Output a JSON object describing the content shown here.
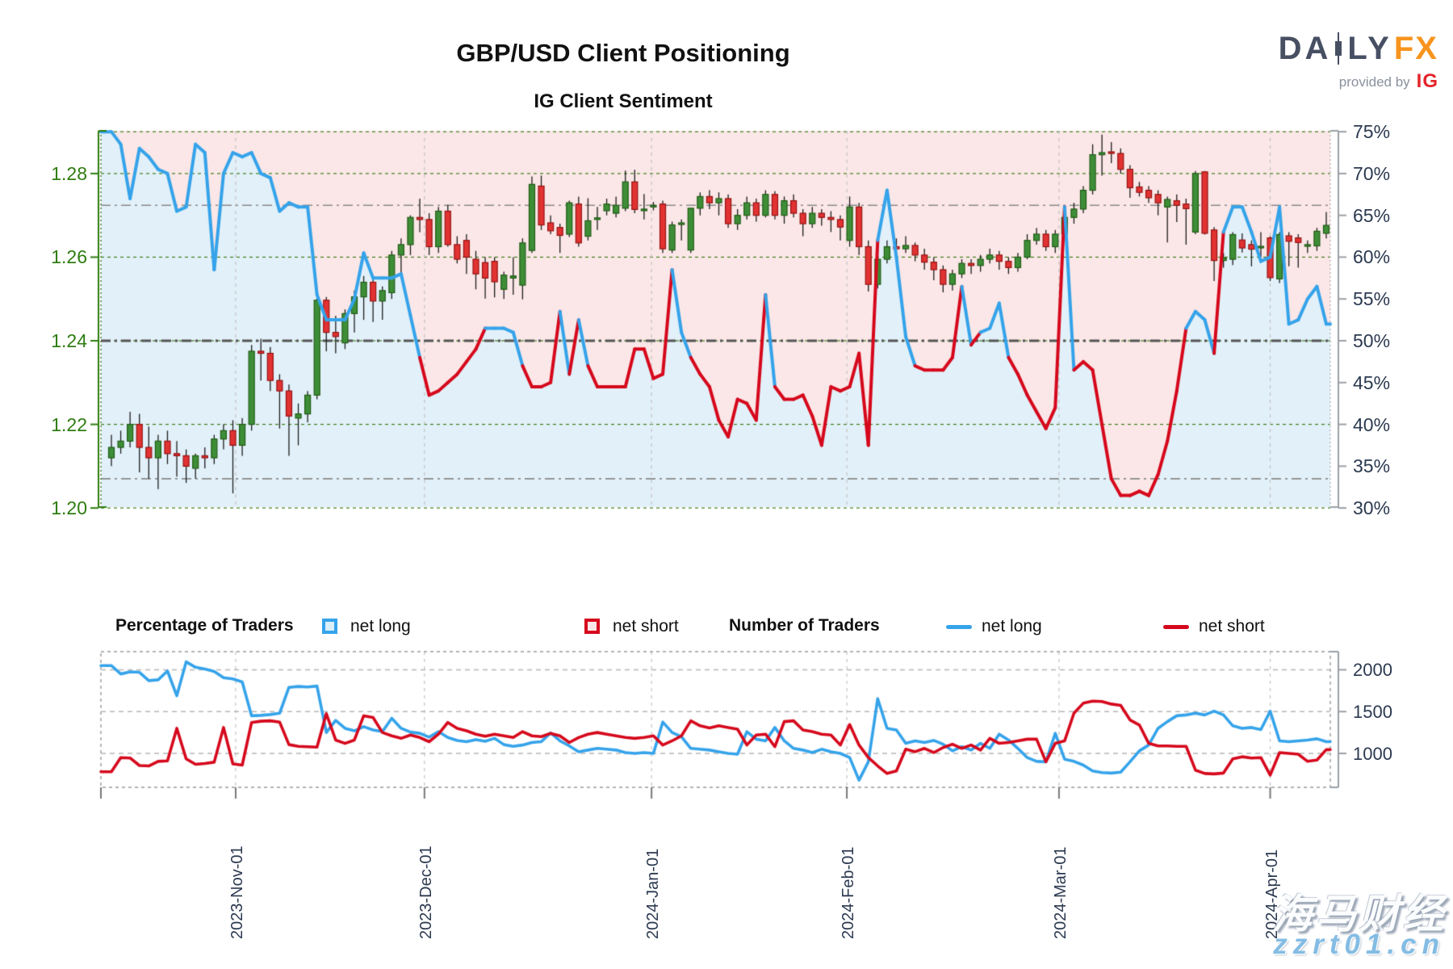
{
  "title": "GBP/USD Client Positioning",
  "subtitle": "IG Client Sentiment",
  "logo": {
    "text_da": "DA",
    "text_ly": "LY",
    "text_fx": "FX",
    "provided_by": "provided by",
    "ig": "IG"
  },
  "watermark": {
    "line1": "海马财经",
    "line2": "zzrt01.cn"
  },
  "legend": {
    "percentage_title": "Percentage of Traders",
    "number_title": "Number of Traders",
    "net_long_label": "net long",
    "net_short_label": "net short"
  },
  "colors": {
    "net_long": "#35a3ea",
    "net_short": "#d6081c",
    "candle_up_fill": "#3e8e38",
    "candle_up_edge": "#1f5c14",
    "candle_down_fill": "#e23232",
    "candle_down_edge": "#971111",
    "wick": "#1c1c1c",
    "bg_short_area": "#fbe7e7",
    "bg_long_area": "#e2f0f9",
    "grid_green": "#3f7d1c",
    "axis_green": "#2e7d10",
    "axis_gray": "#9aa0a6",
    "ref_gray": "#8a8a8a",
    "mid_line": "#555555",
    "month_line": "#c2c2c2",
    "lower_grid": "#b5b5b5",
    "lower_border": "#9b9b9b",
    "label_navy": "#2b3950"
  },
  "chart_data": {
    "type": "candlestick+line",
    "title": "GBP/USD Client Positioning",
    "subtitle": "IG Client Sentiment",
    "main": {
      "price_axis": {
        "ticks": [
          1.2,
          1.22,
          1.24,
          1.26,
          1.28
        ],
        "range": [
          1.198,
          1.2902
        ]
      },
      "percent_axis": {
        "ticks": [
          30,
          35,
          40,
          45,
          50,
          55,
          60,
          65,
          70,
          75
        ],
        "range": [
          29.9,
          76.2
        ]
      },
      "reference_lines_pct": [
        66.2,
        50,
        33.5
      ],
      "months": [
        {
          "label": "2023-Nov-01",
          "index": 13.3
        },
        {
          "label": "2023-Dec-01",
          "index": 33.5
        },
        {
          "label": "2024-Jan-01",
          "index": 57.8
        },
        {
          "label": "2024-Feb-01",
          "index": 78.7
        },
        {
          "label": "2024-Mar-01",
          "index": 101.4
        },
        {
          "label": "2024-Apr-01",
          "index": 124.0
        }
      ],
      "candles_ohlc": [
        [
          1.212,
          1.2175,
          1.21,
          1.2145
        ],
        [
          1.2145,
          1.2185,
          1.213,
          1.216
        ],
        [
          1.216,
          1.223,
          1.2145,
          1.22
        ],
        [
          1.22,
          1.2225,
          1.2085,
          1.2145
        ],
        [
          1.2145,
          1.2195,
          1.207,
          1.212
        ],
        [
          1.212,
          1.2175,
          1.2045,
          1.216
        ],
        [
          1.216,
          1.2185,
          1.2105,
          1.213
        ],
        [
          1.213,
          1.216,
          1.2075,
          1.2125
        ],
        [
          1.2125,
          1.214,
          1.206,
          1.21
        ],
        [
          1.2095,
          1.213,
          1.207,
          1.2125
        ],
        [
          1.2125,
          1.2145,
          1.2095,
          1.212
        ],
        [
          1.212,
          1.2175,
          1.2105,
          1.2165
        ],
        [
          1.2165,
          1.22,
          1.214,
          1.2185
        ],
        [
          1.2185,
          1.221,
          1.2035,
          1.215
        ],
        [
          1.215,
          1.2215,
          1.2125,
          1.22
        ],
        [
          1.22,
          1.239,
          1.2185,
          1.2375
        ],
        [
          1.2375,
          1.2405,
          1.2305,
          1.237
        ],
        [
          1.237,
          1.2385,
          1.228,
          1.2305
        ],
        [
          1.2305,
          1.232,
          1.219,
          1.228
        ],
        [
          1.228,
          1.2295,
          1.2125,
          1.222
        ],
        [
          1.2215,
          1.225,
          1.215,
          1.2225
        ],
        [
          1.2225,
          1.228,
          1.2205,
          1.227
        ],
        [
          1.227,
          1.251,
          1.226,
          1.2497
        ],
        [
          1.2497,
          1.2505,
          1.2375,
          1.242
        ],
        [
          1.242,
          1.246,
          1.237,
          1.241
        ],
        [
          1.2395,
          1.2475,
          1.238,
          1.2465
        ],
        [
          1.2465,
          1.252,
          1.242,
          1.2505
        ],
        [
          1.2505,
          1.2555,
          1.245,
          1.254
        ],
        [
          1.254,
          1.2555,
          1.2445,
          1.2495
        ],
        [
          1.2495,
          1.253,
          1.245,
          1.252
        ],
        [
          1.2515,
          1.2615,
          1.25,
          1.2605
        ],
        [
          1.2605,
          1.2645,
          1.256,
          1.263
        ],
        [
          1.263,
          1.27,
          1.2605,
          1.2695
        ],
        [
          1.2695,
          1.274,
          1.266,
          1.269
        ],
        [
          1.269,
          1.2705,
          1.2605,
          1.2625
        ],
        [
          1.2625,
          1.272,
          1.261,
          1.271
        ],
        [
          1.271,
          1.2725,
          1.2625,
          1.263
        ],
        [
          1.263,
          1.265,
          1.2585,
          1.2595
        ],
        [
          1.264,
          1.2655,
          1.256,
          1.26
        ],
        [
          1.2595,
          1.2615,
          1.2523,
          1.256
        ],
        [
          1.2587,
          1.26,
          1.2501,
          1.255
        ],
        [
          1.259,
          1.26,
          1.2504,
          1.2541
        ],
        [
          1.2523,
          1.2565,
          1.25,
          1.2557
        ],
        [
          1.255,
          1.26,
          1.251,
          1.2555
        ],
        [
          1.2533,
          1.2645,
          1.2499,
          1.2634
        ],
        [
          1.2616,
          1.2793,
          1.261,
          1.2774
        ],
        [
          1.277,
          1.2795,
          1.2665,
          1.2677
        ],
        [
          1.2682,
          1.27,
          1.2655,
          1.2663
        ],
        [
          1.2671,
          1.268,
          1.261,
          1.2652
        ],
        [
          1.2655,
          1.2735,
          1.2648,
          1.273
        ],
        [
          1.2727,
          1.2745,
          1.2625,
          1.2634
        ],
        [
          1.265,
          1.2741,
          1.264,
          1.2687
        ],
        [
          1.269,
          1.272,
          1.2665,
          1.2692
        ],
        [
          1.2711,
          1.274,
          1.27,
          1.2727
        ],
        [
          1.2705,
          1.2745,
          1.2695,
          1.2724
        ],
        [
          1.2717,
          1.2807,
          1.271,
          1.278
        ],
        [
          1.278,
          1.2809,
          1.2705,
          1.2714
        ],
        [
          1.2713,
          1.2751,
          1.269,
          1.2713
        ],
        [
          1.2722,
          1.2732,
          1.2712,
          1.2722
        ],
        [
          1.2727,
          1.2735,
          1.261,
          1.262
        ],
        [
          1.2617,
          1.2685,
          1.261,
          1.2677
        ],
        [
          1.2677,
          1.269,
          1.264,
          1.268
        ],
        [
          1.2617,
          1.2717,
          1.261,
          1.2717
        ],
        [
          1.2717,
          1.2755,
          1.27,
          1.2745
        ],
        [
          1.2745,
          1.276,
          1.2715,
          1.273
        ],
        [
          1.273,
          1.2755,
          1.27,
          1.274
        ],
        [
          1.274,
          1.275,
          1.267,
          1.268
        ],
        [
          1.268,
          1.2715,
          1.2665,
          1.27
        ],
        [
          1.27,
          1.2745,
          1.269,
          1.273
        ],
        [
          1.273,
          1.274,
          1.2685,
          1.27
        ],
        [
          1.27,
          1.276,
          1.2695,
          1.275
        ],
        [
          1.275,
          1.2758,
          1.269,
          1.27
        ],
        [
          1.27,
          1.2745,
          1.268,
          1.2735
        ],
        [
          1.2735,
          1.275,
          1.2695,
          1.2705
        ],
        [
          1.2705,
          1.2715,
          1.265,
          1.268
        ],
        [
          1.268,
          1.272,
          1.267,
          1.2705
        ],
        [
          1.2705,
          1.2715,
          1.2675,
          1.2695
        ],
        [
          1.2695,
          1.271,
          1.266,
          1.269
        ],
        [
          1.269,
          1.27,
          1.264,
          1.2672
        ],
        [
          1.264,
          1.2745,
          1.2625,
          1.272
        ],
        [
          1.272,
          1.273,
          1.2605,
          1.2625
        ],
        [
          1.2625,
          1.264,
          1.2518,
          1.2535
        ],
        [
          1.2535,
          1.2605,
          1.2525,
          1.2595
        ],
        [
          1.2595,
          1.264,
          1.2585,
          1.2625
        ],
        [
          1.2625,
          1.2645,
          1.26,
          1.262
        ],
        [
          1.262,
          1.265,
          1.261,
          1.2628
        ],
        [
          1.2628,
          1.2635,
          1.259,
          1.2605
        ],
        [
          1.2605,
          1.262,
          1.257,
          1.2588
        ],
        [
          1.2588,
          1.26,
          1.2545,
          1.257
        ],
        [
          1.257,
          1.258,
          1.2516,
          1.2535
        ],
        [
          1.2535,
          1.257,
          1.252,
          1.256
        ],
        [
          1.256,
          1.2595,
          1.255,
          1.2585
        ],
        [
          1.2585,
          1.2595,
          1.256,
          1.258
        ],
        [
          1.258,
          1.2605,
          1.2565,
          1.2595
        ],
        [
          1.2595,
          1.262,
          1.2585,
          1.2605
        ],
        [
          1.2605,
          1.2615,
          1.257,
          1.259
        ],
        [
          1.259,
          1.26,
          1.256,
          1.2575
        ],
        [
          1.2575,
          1.261,
          1.2565,
          1.26
        ],
        [
          1.26,
          1.2655,
          1.2595,
          1.264
        ],
        [
          1.264,
          1.267,
          1.263,
          1.2655
        ],
        [
          1.2655,
          1.2665,
          1.2615,
          1.2625
        ],
        [
          1.2625,
          1.2665,
          1.261,
          1.2655
        ],
        [
          1.2655,
          1.2705,
          1.2645,
          1.2695
        ],
        [
          1.2695,
          1.273,
          1.268,
          1.2715
        ],
        [
          1.2715,
          1.277,
          1.2705,
          1.276
        ],
        [
          1.276,
          1.287,
          1.275,
          1.2845
        ],
        [
          1.2845,
          1.2893,
          1.2795,
          1.285
        ],
        [
          1.285,
          1.2875,
          1.2825,
          1.2848
        ],
        [
          1.2848,
          1.286,
          1.28,
          1.281
        ],
        [
          1.281,
          1.282,
          1.2742,
          1.2766
        ],
        [
          1.2768,
          1.278,
          1.2745,
          1.2755
        ],
        [
          1.276,
          1.277,
          1.273,
          1.2742
        ],
        [
          1.275,
          1.276,
          1.27,
          1.273
        ],
        [
          1.272,
          1.2745,
          1.2635,
          1.2738
        ],
        [
          1.2735,
          1.275,
          1.2684,
          1.2724
        ],
        [
          1.2727,
          1.274,
          1.263,
          1.2716
        ],
        [
          1.266,
          1.2806,
          1.2655,
          1.28
        ],
        [
          1.2804,
          1.2806,
          1.2654,
          1.2657
        ],
        [
          1.2665,
          1.2672,
          1.2543,
          1.2592
        ],
        [
          1.2592,
          1.261,
          1.2575,
          1.2598
        ],
        [
          1.2595,
          1.266,
          1.2581,
          1.2654
        ],
        [
          1.2641,
          1.2657,
          1.2611,
          1.2622
        ],
        [
          1.263,
          1.264,
          1.2578,
          1.2619
        ],
        [
          1.2624,
          1.266,
          1.26,
          1.2624
        ],
        [
          1.2646,
          1.265,
          1.2543,
          1.2551
        ],
        [
          1.2548,
          1.266,
          1.2538,
          1.2654
        ],
        [
          1.2651,
          1.266,
          1.2578,
          1.2638
        ],
        [
          1.2646,
          1.2655,
          1.2575,
          1.2635
        ],
        [
          1.2625,
          1.264,
          1.261,
          1.2628
        ],
        [
          1.2627,
          1.267,
          1.2615,
          1.2662
        ],
        [
          1.2657,
          1.2708,
          1.2645,
          1.2676
        ]
      ],
      "net_long_pct": [
        75,
        73.5,
        67,
        73,
        72,
        70.5,
        70,
        65.5,
        66,
        73.5,
        72.5,
        58.5,
        70,
        72.5,
        72,
        72.5,
        70,
        69.5,
        65.5,
        66.5,
        66,
        66,
        55.5,
        52.5,
        52.5,
        52.5,
        55,
        60.5,
        57.5,
        57.5,
        57.5,
        58,
        53,
        48,
        43.5,
        44,
        45,
        46,
        47.5,
        49,
        51.5,
        51.5,
        51.5,
        51,
        47,
        44.5,
        44.5,
        45,
        53.5,
        46,
        52.5,
        47,
        44.5,
        44.5,
        44.5,
        44.5,
        49,
        49,
        45.5,
        46,
        58.5,
        51,
        48,
        46,
        44.5,
        40.5,
        38.5,
        43,
        42.5,
        40.5,
        55.5,
        44.5,
        43,
        43,
        43.5,
        41,
        37.5,
        44.5,
        44,
        44.5,
        48.5,
        37.5,
        62,
        68,
        60,
        50.5,
        47,
        46.5,
        46.5,
        46.5,
        48,
        56.5,
        49.5,
        51,
        51.5,
        54.5,
        48,
        46,
        43.5,
        41.5,
        39.5,
        42,
        66,
        46.5,
        47.5,
        46.5,
        40,
        33.5,
        31.5,
        31.5,
        32,
        31.5,
        34,
        38,
        44,
        51.5,
        53.5,
        52.5,
        48.5,
        63,
        66,
        66,
        63,
        59.5,
        60,
        66,
        52,
        52.5,
        55,
        56.5,
        52
      ]
    },
    "lower": {
      "count_axis": {
        "ticks": [
          1000,
          1500,
          2000
        ],
        "range": [
          596,
          2202
        ]
      },
      "net_long_count": [
        2050,
        1950,
        1975,
        1970,
        1870,
        1880,
        1985,
        1690,
        2095,
        2030,
        2010,
        1980,
        1905,
        1890,
        1855,
        1450,
        1455,
        1465,
        1480,
        1790,
        1800,
        1795,
        1805,
        1250,
        1395,
        1300,
        1270,
        1320,
        1280,
        1260,
        1420,
        1300,
        1255,
        1240,
        1195,
        1260,
        1190,
        1155,
        1140,
        1165,
        1145,
        1180,
        1105,
        1085,
        1100,
        1130,
        1140,
        1245,
        1150,
        1090,
        1020,
        1040,
        1060,
        1050,
        1040,
        1010,
        1000,
        1010,
        1000,
        1375,
        1250,
        1200,
        1060,
        1050,
        1040,
        1020,
        1000,
        990,
        1260,
        1170,
        1150,
        1310,
        1150,
        1060,
        1040,
        1010,
        1050,
        1020,
        1000,
        950,
        680,
        900,
        1655,
        1300,
        1280,
        1120,
        1150,
        1130,
        1155,
        1110,
        1030,
        1080,
        1040,
        1120,
        1060,
        1230,
        1160,
        1060,
        950,
        905,
        900,
        1240,
        930,
        905,
        860,
        790,
        770,
        765,
        775,
        900,
        1030,
        1100,
        1300,
        1380,
        1450,
        1460,
        1480,
        1460,
        1505,
        1460,
        1330,
        1300,
        1310,
        1285,
        1505,
        1150,
        1140,
        1150,
        1160,
        1175,
        1140
      ],
      "net_short_count": [
        780,
        950,
        945,
        855,
        850,
        905,
        910,
        1300,
        935,
        870,
        880,
        895,
        1310,
        875,
        860,
        1370,
        1385,
        1390,
        1375,
        1105,
        1085,
        1080,
        1075,
        1475,
        1160,
        1120,
        1160,
        1450,
        1430,
        1250,
        1210,
        1180,
        1220,
        1190,
        1140,
        1230,
        1370,
        1300,
        1270,
        1230,
        1205,
        1230,
        1210,
        1190,
        1260,
        1210,
        1200,
        1240,
        1210,
        1130,
        1190,
        1230,
        1250,
        1230,
        1210,
        1190,
        1180,
        1190,
        1210,
        1100,
        1150,
        1210,
        1390,
        1330,
        1305,
        1330,
        1310,
        1290,
        1100,
        1220,
        1230,
        1080,
        1380,
        1390,
        1280,
        1260,
        1230,
        1220,
        1100,
        1345,
        1100,
        950,
        850,
        760,
        790,
        1050,
        1020,
        1060,
        1010,
        1070,
        1110,
        1060,
        1100,
        1040,
        1180,
        1120,
        1130,
        1150,
        1170,
        1170,
        900,
        1120,
        1150,
        1480,
        1600,
        1625,
        1620,
        1590,
        1575,
        1400,
        1340,
        1120,
        1090,
        1090,
        1085,
        1085,
        800,
        760,
        755,
        765,
        935,
        960,
        945,
        950,
        740,
        1010,
        1000,
        990,
        905,
        920,
        1045
      ]
    }
  }
}
